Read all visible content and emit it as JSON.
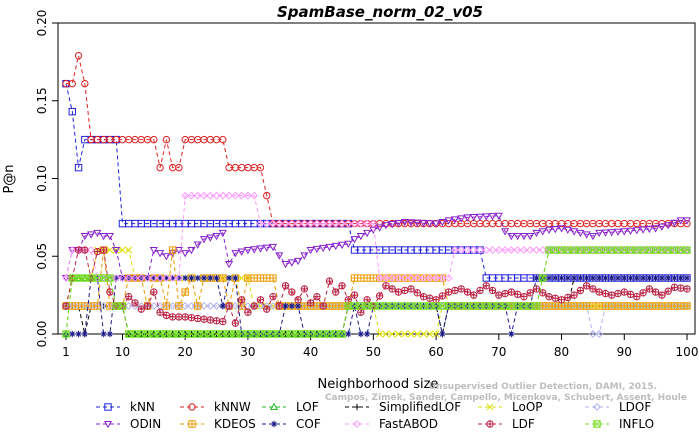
{
  "chart_data": {
    "type": "line",
    "title": "SpamBase_norm_02_v05",
    "xlabel": "Neighborhood size",
    "ylabel": "P@n",
    "xlim": [
      1,
      100
    ],
    "ylim": [
      0,
      0.2
    ],
    "xticks": [
      1,
      10,
      20,
      30,
      40,
      50,
      60,
      70,
      80,
      90,
      100
    ],
    "yticks": [
      0.0,
      0.05,
      0.1,
      0.15,
      0.2
    ],
    "ytick_labels": [
      "0.00",
      "0.05",
      "0.10",
      "0.15",
      "0.20"
    ],
    "grid": false,
    "legend_position": "bottom",
    "watermark": [
      "Unsupervised Outlier Detection, DAMI, 2015.",
      "Campos, Zimek, Sander, Campello, Micenkova, Schubert, Assent, Houle"
    ],
    "series": [
      {
        "name": "kNN",
        "color": "#2222dd",
        "marker": "square",
        "points": [
          [
            1,
            0.161
          ],
          [
            2,
            0.143
          ],
          [
            3,
            0.107
          ],
          [
            4,
            0.125
          ],
          [
            9,
            0.125
          ],
          [
            10,
            0.071
          ],
          [
            46,
            0.071
          ],
          [
            47,
            0.054
          ],
          [
            67,
            0.054
          ],
          [
            68,
            0.036
          ],
          [
            100,
            0.036
          ]
        ]
      },
      {
        "name": "kNNW",
        "color": "#dd2222",
        "marker": "circle",
        "points": [
          [
            1,
            0.161
          ],
          [
            2,
            0.161
          ],
          [
            3,
            0.179
          ],
          [
            4,
            0.161
          ],
          [
            5,
            0.125
          ],
          [
            15,
            0.125
          ],
          [
            16,
            0.107
          ],
          [
            17,
            0.125
          ],
          [
            18,
            0.107
          ],
          [
            19,
            0.107
          ],
          [
            20,
            0.125
          ],
          [
            26,
            0.125
          ],
          [
            27,
            0.107
          ],
          [
            32,
            0.107
          ],
          [
            33,
            0.089
          ],
          [
            34,
            0.071
          ],
          [
            100,
            0.071
          ]
        ]
      },
      {
        "name": "LOF",
        "color": "#22bb22",
        "marker": "triangle",
        "points": [
          [
            1,
            0.0
          ],
          [
            2,
            0.036
          ],
          [
            8,
            0.036
          ],
          [
            9,
            0.018
          ],
          [
            10,
            0.018
          ],
          [
            11,
            0.0
          ],
          [
            40,
            0.0
          ],
          [
            45,
            0.0
          ],
          [
            46,
            0.018
          ],
          [
            76,
            0.018
          ],
          [
            77,
            0.036
          ],
          [
            78,
            0.054
          ],
          [
            100,
            0.054
          ]
        ]
      },
      {
        "name": "SimplifiedLOF",
        "color": "#000000",
        "marker": "plus",
        "points": [
          [
            1,
            0.018
          ],
          [
            2,
            0.018
          ],
          [
            3,
            0.018
          ],
          [
            4,
            0.0
          ],
          [
            5,
            0.018
          ],
          [
            10,
            0.018
          ],
          [
            11,
            0.0
          ],
          [
            45,
            0.0
          ],
          [
            46,
            0.018
          ],
          [
            60,
            0.018
          ],
          [
            61,
            0.0
          ],
          [
            62,
            0.018
          ],
          [
            81,
            0.018
          ],
          [
            82,
            0.036
          ],
          [
            100,
            0.036
          ]
        ]
      },
      {
        "name": "LoOP",
        "color": "#dddd00",
        "marker": "x",
        "points": [
          [
            1,
            0.018
          ],
          [
            2,
            0.036
          ],
          [
            5,
            0.036
          ],
          [
            6,
            0.054
          ],
          [
            11,
            0.054
          ],
          [
            12,
            0.036
          ],
          [
            30,
            0.036
          ],
          [
            31,
            0.018
          ],
          [
            40,
            0.018
          ],
          [
            50,
            0.018
          ],
          [
            51,
            0.0
          ],
          [
            60,
            0.0
          ],
          [
            61,
            0.018
          ],
          [
            100,
            0.018
          ]
        ]
      },
      {
        "name": "LDOF",
        "color": "#b0b0ee",
        "marker": "diamond",
        "points": [
          [
            1,
            0.018
          ],
          [
            10,
            0.018
          ],
          [
            11,
            0.018
          ],
          [
            20,
            0.018
          ],
          [
            30,
            0.018
          ],
          [
            40,
            0.018
          ],
          [
            50,
            0.018
          ],
          [
            60,
            0.018
          ],
          [
            70,
            0.018
          ],
          [
            80,
            0.018
          ],
          [
            84,
            0.018
          ],
          [
            85,
            0.0
          ],
          [
            86,
            0.0
          ],
          [
            87,
            0.018
          ],
          [
            100,
            0.018
          ]
        ]
      },
      {
        "name": "ODIN",
        "color": "#8822cc",
        "marker": "triangle-down",
        "points": [
          [
            1,
            0.036
          ],
          [
            2,
            0.054
          ],
          [
            3,
            0.054
          ],
          [
            4,
            0.063
          ],
          [
            6,
            0.065
          ],
          [
            7,
            0.063
          ],
          [
            8,
            0.063
          ],
          [
            9,
            0.054
          ],
          [
            10,
            0.036
          ],
          [
            14,
            0.036
          ],
          [
            15,
            0.054
          ],
          [
            17,
            0.05
          ],
          [
            19,
            0.054
          ],
          [
            20,
            0.052
          ],
          [
            21,
            0.054
          ],
          [
            23,
            0.061
          ],
          [
            25,
            0.063
          ],
          [
            26,
            0.065
          ],
          [
            27,
            0.045
          ],
          [
            28,
            0.052
          ],
          [
            30,
            0.054
          ],
          [
            34,
            0.056
          ],
          [
            36,
            0.045
          ],
          [
            38,
            0.047
          ],
          [
            40,
            0.054
          ],
          [
            46,
            0.058
          ],
          [
            47,
            0.061
          ],
          [
            50,
            0.067
          ],
          [
            52,
            0.07
          ],
          [
            55,
            0.072
          ],
          [
            60,
            0.071
          ],
          [
            62,
            0.073
          ],
          [
            65,
            0.075
          ],
          [
            70,
            0.076
          ],
          [
            71,
            0.066
          ],
          [
            72,
            0.063
          ],
          [
            75,
            0.063
          ],
          [
            76,
            0.065
          ],
          [
            78,
            0.067
          ],
          [
            80,
            0.068
          ],
          [
            82,
            0.066
          ],
          [
            85,
            0.063
          ],
          [
            86,
            0.065
          ],
          [
            90,
            0.066
          ],
          [
            95,
            0.068
          ],
          [
            97,
            0.07
          ],
          [
            99,
            0.073
          ],
          [
            100,
            0.073
          ]
        ]
      },
      {
        "name": "KDEOS",
        "color": "#ee9900",
        "marker": "square-cross",
        "points": [
          [
            1,
            0.018
          ],
          [
            6,
            0.018
          ],
          [
            7,
            0.054
          ],
          [
            8,
            0.018
          ],
          [
            10,
            0.018
          ],
          [
            11,
            0.036
          ],
          [
            13,
            0.036
          ],
          [
            14,
            0.018
          ],
          [
            15,
            0.036
          ],
          [
            16,
            0.036
          ],
          [
            17,
            0.018
          ],
          [
            18,
            0.054
          ],
          [
            19,
            0.018
          ],
          [
            21,
            0.036
          ],
          [
            22,
            0.018
          ],
          [
            23,
            0.036
          ],
          [
            26,
            0.036
          ],
          [
            27,
            0.018
          ],
          [
            28,
            0.036
          ],
          [
            29,
            0.018
          ],
          [
            30,
            0.036
          ],
          [
            34,
            0.036
          ],
          [
            35,
            0.018
          ],
          [
            46,
            0.018
          ],
          [
            47,
            0.036
          ],
          [
            61,
            0.036
          ],
          [
            62,
            0.018
          ],
          [
            100,
            0.018
          ]
        ]
      },
      {
        "name": "COF",
        "color": "#1a1a88",
        "marker": "star",
        "points": [
          [
            1,
            0.0
          ],
          [
            4,
            0.0
          ],
          [
            5,
            0.036
          ],
          [
            6,
            0.036
          ],
          [
            7,
            0.0
          ],
          [
            8,
            0.0
          ],
          [
            9,
            0.036
          ],
          [
            25,
            0.036
          ],
          [
            26,
            0.018
          ],
          [
            27,
            0.036
          ],
          [
            28,
            0.036
          ],
          [
            29,
            0.0
          ],
          [
            35,
            0.0
          ],
          [
            36,
            0.018
          ],
          [
            38,
            0.018
          ],
          [
            39,
            0.0
          ],
          [
            46,
            0.0
          ],
          [
            47,
            0.018
          ],
          [
            48,
            0.0
          ],
          [
            49,
            0.0
          ],
          [
            50,
            0.018
          ],
          [
            60,
            0.018
          ],
          [
            61,
            0.0
          ],
          [
            62,
            0.018
          ],
          [
            70,
            0.018
          ],
          [
            71,
            0.018
          ],
          [
            72,
            0.0
          ],
          [
            73,
            0.018
          ],
          [
            75,
            0.018
          ],
          [
            76,
            0.036
          ],
          [
            100,
            0.036
          ]
        ]
      },
      {
        "name": "FastABOD",
        "color": "#ff99ff",
        "marker": "diamond",
        "points": [
          [
            1,
            0.036
          ],
          [
            2,
            0.054
          ],
          [
            5,
            0.054
          ],
          [
            6,
            0.036
          ],
          [
            19,
            0.036
          ],
          [
            20,
            0.089
          ],
          [
            31,
            0.089
          ],
          [
            32,
            0.071
          ],
          [
            50,
            0.071
          ],
          [
            51,
            0.036
          ],
          [
            62,
            0.036
          ],
          [
            63,
            0.054
          ],
          [
            75,
            0.054
          ],
          [
            76,
            0.054
          ],
          [
            77,
            0.054
          ],
          [
            78,
            0.054
          ],
          [
            100,
            0.054
          ]
        ]
      },
      {
        "name": "LDF",
        "color": "#bb2244",
        "marker": "circle-plus",
        "points": [
          [
            1,
            0.018
          ],
          [
            2,
            0.036
          ],
          [
            3,
            0.054
          ],
          [
            4,
            0.054
          ],
          [
            5,
            0.036
          ],
          [
            6,
            0.053
          ],
          [
            7,
            0.054
          ],
          [
            8,
            0.027
          ],
          [
            9,
            0.018
          ],
          [
            10,
            0.018
          ],
          [
            11,
            0.024
          ],
          [
            12,
            0.02
          ],
          [
            13,
            0.016
          ],
          [
            14,
            0.018
          ],
          [
            15,
            0.027
          ],
          [
            16,
            0.014
          ],
          [
            17,
            0.012
          ],
          [
            18,
            0.011
          ],
          [
            20,
            0.011
          ],
          [
            22,
            0.01
          ],
          [
            24,
            0.009
          ],
          [
            26,
            0.008
          ],
          [
            27,
            0.018
          ],
          [
            28,
            0.007
          ],
          [
            29,
            0.022
          ],
          [
            30,
            0.014
          ],
          [
            31,
            0.018
          ],
          [
            32,
            0.022
          ],
          [
            33,
            0.016
          ],
          [
            34,
            0.024
          ],
          [
            35,
            0.018
          ],
          [
            36,
            0.031
          ],
          [
            37,
            0.027
          ],
          [
            38,
            0.022
          ],
          [
            39,
            0.029
          ],
          [
            40,
            0.02
          ],
          [
            41,
            0.024
          ],
          [
            42,
            0.018
          ],
          [
            43,
            0.034
          ],
          [
            44,
            0.027
          ],
          [
            45,
            0.031
          ],
          [
            46,
            0.022
          ],
          [
            47,
            0.025
          ],
          [
            48,
            0.014
          ],
          [
            49,
            0.022
          ],
          [
            50,
            0.018
          ],
          [
            52,
            0.031
          ],
          [
            54,
            0.027
          ],
          [
            56,
            0.029
          ],
          [
            58,
            0.024
          ],
          [
            60,
            0.022
          ],
          [
            62,
            0.027
          ],
          [
            64,
            0.029
          ],
          [
            66,
            0.025
          ],
          [
            68,
            0.031
          ],
          [
            70,
            0.025
          ],
          [
            72,
            0.027
          ],
          [
            74,
            0.024
          ],
          [
            76,
            0.029
          ],
          [
            78,
            0.024
          ],
          [
            80,
            0.022
          ],
          [
            82,
            0.025
          ],
          [
            84,
            0.031
          ],
          [
            86,
            0.027
          ],
          [
            88,
            0.025
          ],
          [
            90,
            0.027
          ],
          [
            92,
            0.024
          ],
          [
            94,
            0.029
          ],
          [
            96,
            0.025
          ],
          [
            98,
            0.03
          ],
          [
            100,
            0.029
          ]
        ]
      },
      {
        "name": "INFLO",
        "color": "#77dd22",
        "marker": "square-x",
        "points": [
          [
            1,
            0.0
          ],
          [
            2,
            0.036
          ],
          [
            8,
            0.036
          ],
          [
            9,
            0.018
          ],
          [
            10,
            0.018
          ],
          [
            11,
            0.0
          ],
          [
            45,
            0.0
          ],
          [
            46,
            0.018
          ],
          [
            76,
            0.018
          ],
          [
            77,
            0.036
          ],
          [
            78,
            0.054
          ],
          [
            100,
            0.054
          ]
        ]
      }
    ]
  }
}
